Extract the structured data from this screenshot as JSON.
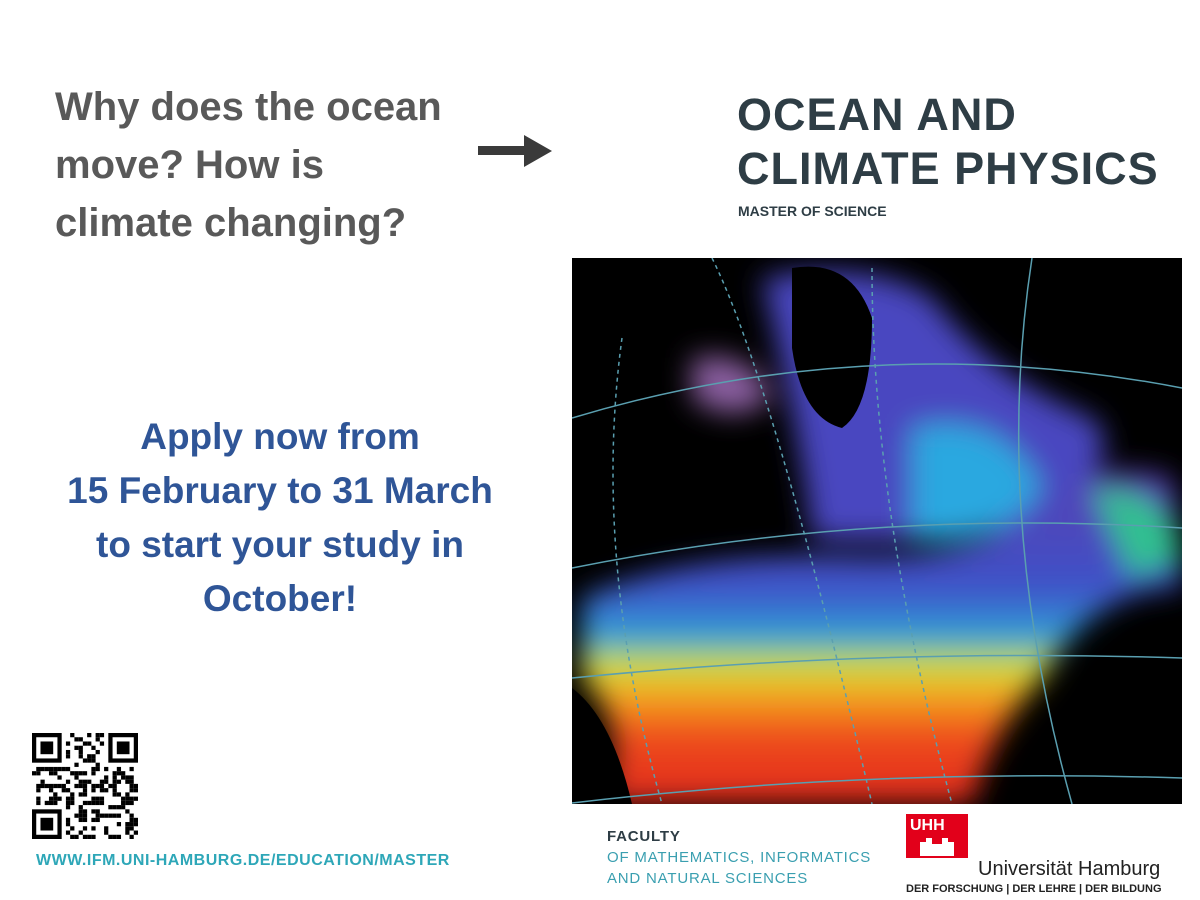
{
  "question": {
    "lines": [
      "Why does the ocean",
      "move? How is",
      "climate changing?"
    ]
  },
  "program": {
    "title_lines": [
      "OCEAN AND",
      "CLIMATE PHYSICS"
    ],
    "degree": "MASTER OF SCIENCE"
  },
  "apply": {
    "lines": [
      "Apply now from",
      "15 February to 31 March",
      "to start your study in",
      "October!"
    ]
  },
  "url": "WWW.IFM.UNI-HAMBURG.DE/EDUCATION/MASTER",
  "faculty": {
    "lines": [
      "FACULTY",
      "OF MATHEMATICS, INFORMATICS",
      "AND NATURAL SCIENCES"
    ]
  },
  "university": {
    "logo": "UHH",
    "name": "Universität Hamburg",
    "motto": "DER FORSCHUNG | DER LEHRE | DER BILDUNG"
  }
}
